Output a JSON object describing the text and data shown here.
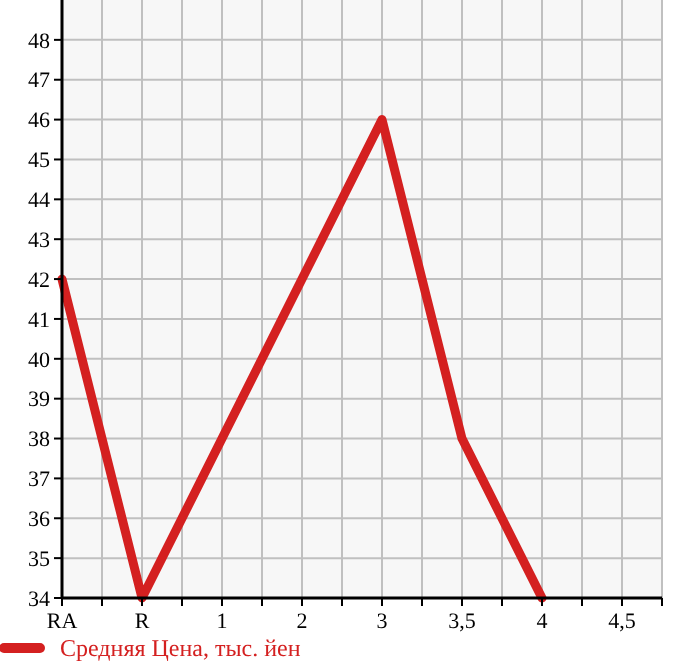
{
  "chart_data": {
    "type": "line",
    "categories": [
      "RA",
      "R",
      "1",
      "2",
      "3",
      "3,5",
      "4",
      "4,5"
    ],
    "series": [
      {
        "name": "Средняя Цена, тыс. йен",
        "color": "#d42020",
        "values": [
          42,
          34,
          38,
          42,
          46,
          38,
          34,
          null
        ]
      }
    ],
    "ylim": [
      34,
      49
    ],
    "yticks": [
      34,
      35,
      36,
      37,
      38,
      39,
      40,
      41,
      42,
      43,
      44,
      45,
      46,
      47,
      48
    ],
    "grid": true,
    "legend": "bottom left",
    "marker": "none",
    "line_style": "solid"
  }
}
